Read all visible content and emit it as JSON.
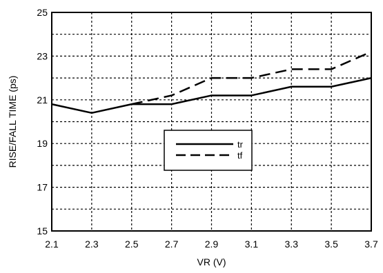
{
  "chart_data": {
    "type": "line",
    "title": "",
    "xlabel": "VR (V)",
    "ylabel": "RISE/FALL TIME (ps)",
    "xlim": [
      2.1,
      3.7
    ],
    "ylim": [
      15,
      25
    ],
    "x_ticks": [
      "2.1",
      "2.3",
      "2.5",
      "2.7",
      "2.9",
      "3.1",
      "3.3",
      "3.5",
      "3.7"
    ],
    "y_ticks": [
      "15",
      "17",
      "19",
      "21",
      "23",
      "25"
    ],
    "grid": true,
    "legend_position": "center",
    "series": [
      {
        "name": "tr",
        "line_style": "solid",
        "x": [
          2.1,
          2.3,
          2.5,
          2.7,
          2.9,
          3.1,
          3.3,
          3.5,
          3.7
        ],
        "y": [
          20.8,
          20.4,
          20.8,
          20.8,
          21.2,
          21.2,
          21.6,
          21.6,
          22.0
        ]
      },
      {
        "name": "tf",
        "line_style": "dashed",
        "x": [
          2.5,
          2.7,
          2.9,
          3.1,
          3.3,
          3.5,
          3.7
        ],
        "y": [
          20.8,
          21.2,
          22.0,
          22.0,
          22.4,
          22.4,
          23.2
        ]
      }
    ]
  }
}
